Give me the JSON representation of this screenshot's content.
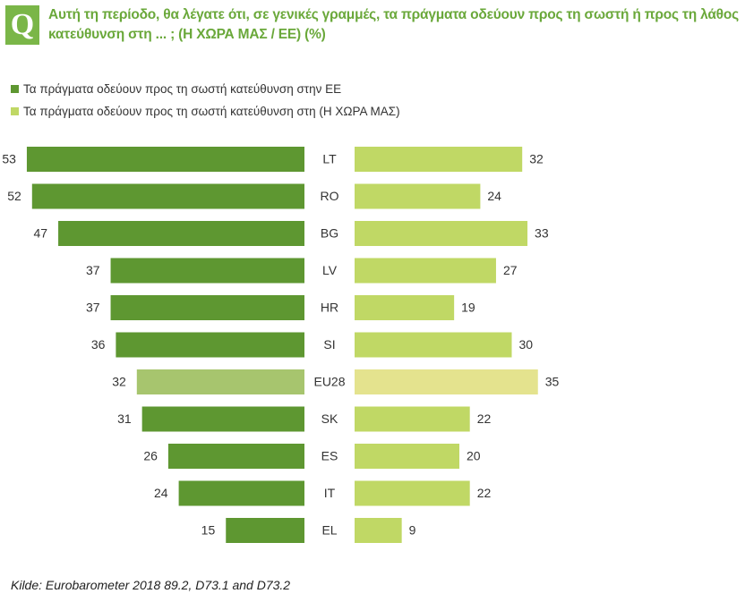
{
  "header": {
    "badge": "Q",
    "title": "Αυτή τη περίοδο, θα λέγατε ότι, σε γενικές γραμμές, τα πράγματα οδεύουν προς τη σωστή ή προς τη λάθος κατεύθυνση στη ... ; (Η ΧΩΡΑ ΜΑΣ / ΕΕ) (%)"
  },
  "colors": {
    "eu_dark": "#5e9731",
    "country_light": "#c0d865",
    "eu28_left": "#a7c56e",
    "eu28_right": "#e4e38e",
    "title_green": "#6aa83a"
  },
  "chart_data": {
    "type": "bar",
    "orientation": "horizontal-butterfly",
    "categories": [
      "LT",
      "RO",
      "BG",
      "LV",
      "HR",
      "SI",
      "EU28",
      "SK",
      "ES",
      "IT",
      "EL"
    ],
    "series": [
      {
        "name": "Τα πράγματα οδεύουν προς τη σωστή κατεύθυνση στην ΕΕ",
        "values": [
          53,
          52,
          47,
          37,
          37,
          36,
          32,
          31,
          26,
          24,
          15
        ]
      },
      {
        "name": "Τα πράγματα οδεύουν προς τη σωστή κατεύθυνση στη (Η ΧΩΡΑ ΜΑΣ)",
        "values": [
          32,
          24,
          33,
          27,
          19,
          30,
          35,
          22,
          20,
          22,
          9
        ]
      }
    ],
    "highlight": "EU28",
    "legend": "top-left"
  },
  "footer": {
    "source": "Kilde: Eurobarometer 2018 89.2, D73.1 and D73.2"
  }
}
